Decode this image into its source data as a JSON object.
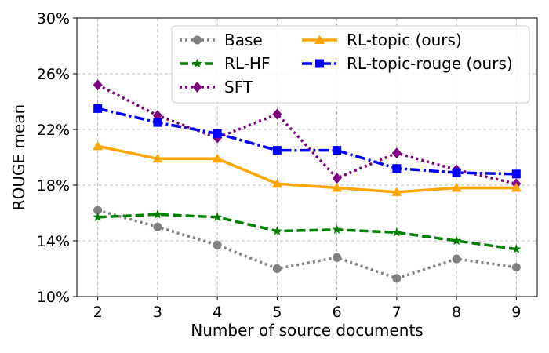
{
  "chart_data": {
    "type": "line",
    "x": [
      2,
      3,
      4,
      5,
      6,
      7,
      8,
      9
    ],
    "xlabel": "Number of source documents",
    "ylabel": "ROUGE mean",
    "xlim": [
      1.65,
      9.35
    ],
    "ylim": [
      10,
      30
    ],
    "yticks": [
      10,
      14,
      18,
      22,
      26,
      30
    ],
    "ytick_labels": [
      "10%",
      "14%",
      "18%",
      "22%",
      "26%",
      "30%"
    ],
    "xticks": [
      2,
      3,
      4,
      5,
      6,
      7,
      8,
      9
    ],
    "xtick_labels": [
      "2",
      "3",
      "4",
      "5",
      "6",
      "7",
      "8",
      "9"
    ],
    "grid": true,
    "legend_placement": "top-right",
    "series": [
      {
        "name": "Base",
        "values": [
          16.2,
          15.0,
          13.7,
          12.0,
          12.8,
          11.3,
          12.7,
          12.1
        ],
        "color": "#808080",
        "marker": "circle",
        "dash": "dotted"
      },
      {
        "name": "RL-HF",
        "values": [
          15.7,
          15.9,
          15.7,
          14.7,
          14.8,
          14.6,
          14.0,
          13.4
        ],
        "color": "#008000",
        "marker": "star",
        "dash": "dashed"
      },
      {
        "name": "SFT",
        "values": [
          25.2,
          23.0,
          21.4,
          23.1,
          18.5,
          20.3,
          19.1,
          18.1
        ],
        "color": "#800080",
        "marker": "diamond",
        "dash": "dotted"
      },
      {
        "name": "RL-topic (ours)",
        "values": [
          20.8,
          19.9,
          19.9,
          18.1,
          17.8,
          17.5,
          17.8,
          17.8
        ],
        "color": "#ffa500",
        "marker": "triangle",
        "dash": "solid"
      },
      {
        "name": "RL-topic-rouge (ours)",
        "values": [
          23.5,
          22.5,
          21.7,
          20.5,
          20.5,
          19.2,
          18.9,
          18.8
        ],
        "color": "#0000ff",
        "marker": "square",
        "dash": "dashdot"
      }
    ]
  }
}
